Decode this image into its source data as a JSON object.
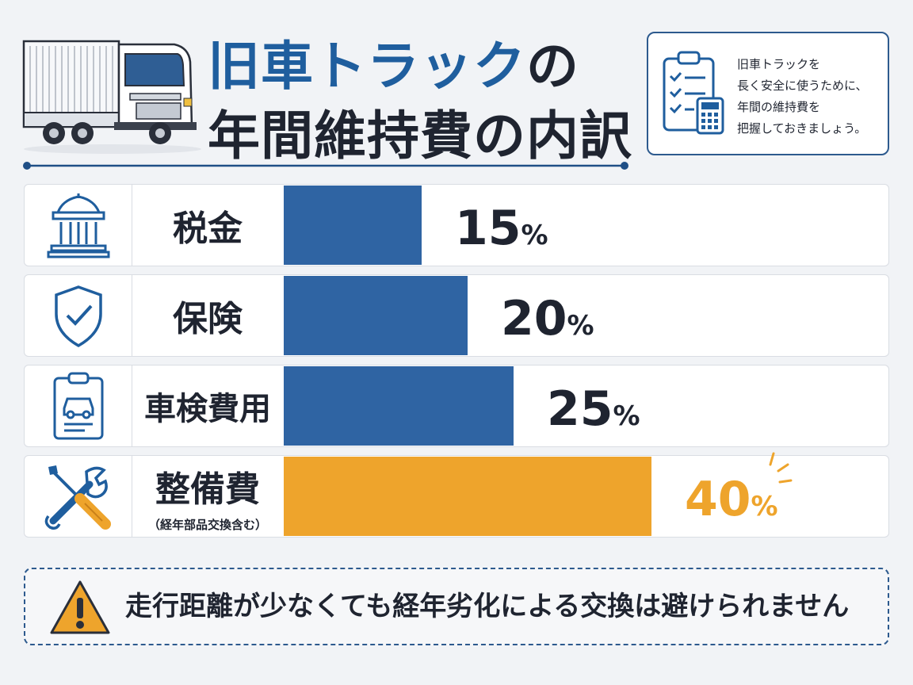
{
  "header": {
    "title_line1_main": "旧車トラック",
    "title_line1_suffix": "の",
    "title_line2": "年間維持費の内訳"
  },
  "note": {
    "lines": [
      "旧車トラックを",
      "長く安全に使うために、",
      "年間の維持費を",
      "把握しておきましょう。"
    ]
  },
  "colors": {
    "bar_blue": "#2f64a3",
    "bar_highlight": "#eea42c",
    "text_dark": "#1f2430",
    "accent": "#1f5e9e"
  },
  "icons": [
    "truck-icon",
    "clipboard-calculator-icon",
    "bank-icon",
    "shield-check-icon",
    "clipboard-car-icon",
    "wrench-screwdriver-icon",
    "warning-icon"
  ],
  "chart_data": {
    "type": "bar",
    "orientation": "horizontal",
    "categories": [
      "税金",
      "保険",
      "車検費用",
      "整備費"
    ],
    "category_notes": [
      "",
      "",
      "",
      "（経年部品交換含む）"
    ],
    "values": [
      15,
      20,
      25,
      40
    ],
    "value_labels": [
      "15",
      "20",
      "25",
      "40"
    ],
    "unit": "%",
    "highlight_index": 3
  },
  "warning": {
    "text": "走行距離が少なくても経年劣化による交換は避けられません"
  }
}
